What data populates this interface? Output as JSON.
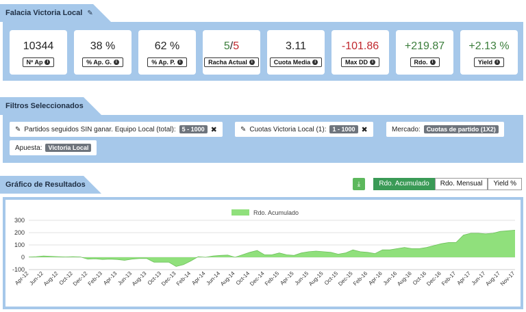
{
  "header": {
    "title": "Falacia Victoria Local",
    "edit_icon": "pencil-icon"
  },
  "stats": [
    {
      "value": "10344",
      "label": "Nº Ap"
    },
    {
      "value": "38 %",
      "label": "% Ap. G."
    },
    {
      "value": "62 %",
      "label": "% Ap. P."
    },
    {
      "value_win": "5",
      "value_sep": "/",
      "value_loss": "5",
      "label": "Racha Actual"
    },
    {
      "value": "3.11",
      "label": "Cuota Media"
    },
    {
      "value": "-101.86",
      "label": "Max DD"
    },
    {
      "value": "+219.87",
      "label": "Rdo."
    },
    {
      "value": "+2.13 %",
      "label": "Yield"
    }
  ],
  "filters": {
    "title": "Filtros Seleccionados",
    "items": [
      {
        "text": "Partidos seguidos SIN ganar. Equipo Local (total):",
        "badge": "5 - 1000",
        "removable": true
      },
      {
        "text": "Cuotas Victoria Local (1):",
        "badge": "1 - 1000",
        "removable": true
      },
      {
        "text": "Mercado:",
        "badge": "Cuotas de partido (1X2)",
        "removable": false
      },
      {
        "text": "Apuesta:",
        "badge": "Victoria Local",
        "removable": false
      }
    ],
    "remove_glyph": "✖"
  },
  "results": {
    "title": "Gráfico de Resultados",
    "download_icon": "download-icon",
    "tabs": [
      "Rdo. Acumulado",
      "Rdo. Mensual",
      "Yield %"
    ],
    "active_tab": "Rdo. Acumulado"
  },
  "chart_data": {
    "type": "area",
    "series": [
      {
        "name": "Rdo. Acumulado",
        "color": "#90e07c"
      }
    ],
    "ylim": [
      -100,
      300
    ],
    "yticks": [
      -100,
      0,
      100,
      200,
      300
    ],
    "x_tick_labels": [
      "Apr-12",
      "Jun-12",
      "Aug-12",
      "Oct-12",
      "Dec-12",
      "Feb-13",
      "Apr-13",
      "Jun-13",
      "Aug-13",
      "Oct-13",
      "Dec-13",
      "Feb-14",
      "Apr-14",
      "Jun-14",
      "Aug-14",
      "Oct-14",
      "Dec-14",
      "Feb-15",
      "Apr-15",
      "Jun-15",
      "Aug-15",
      "Oct-15",
      "Dec-15",
      "Feb-16",
      "Apr-16",
      "Jun-16",
      "Aug-16",
      "Oct-16",
      "Dec-16",
      "Feb-17",
      "Apr-17",
      "Jun-17",
      "Aug-17",
      "Nov-17"
    ],
    "values": [
      2,
      5,
      10,
      8,
      5,
      3,
      5,
      3,
      -15,
      -12,
      -18,
      -15,
      -18,
      -25,
      -15,
      -10,
      -10,
      -40,
      -40,
      -40,
      -75,
      -60,
      -30,
      5,
      0,
      10,
      15,
      18,
      0,
      20,
      40,
      55,
      20,
      20,
      35,
      20,
      15,
      35,
      45,
      50,
      45,
      40,
      25,
      35,
      60,
      45,
      40,
      30,
      60,
      60,
      70,
      80,
      70,
      70,
      80,
      95,
      110,
      120,
      120,
      180,
      195,
      195,
      190,
      195,
      210,
      215,
      220
    ]
  }
}
